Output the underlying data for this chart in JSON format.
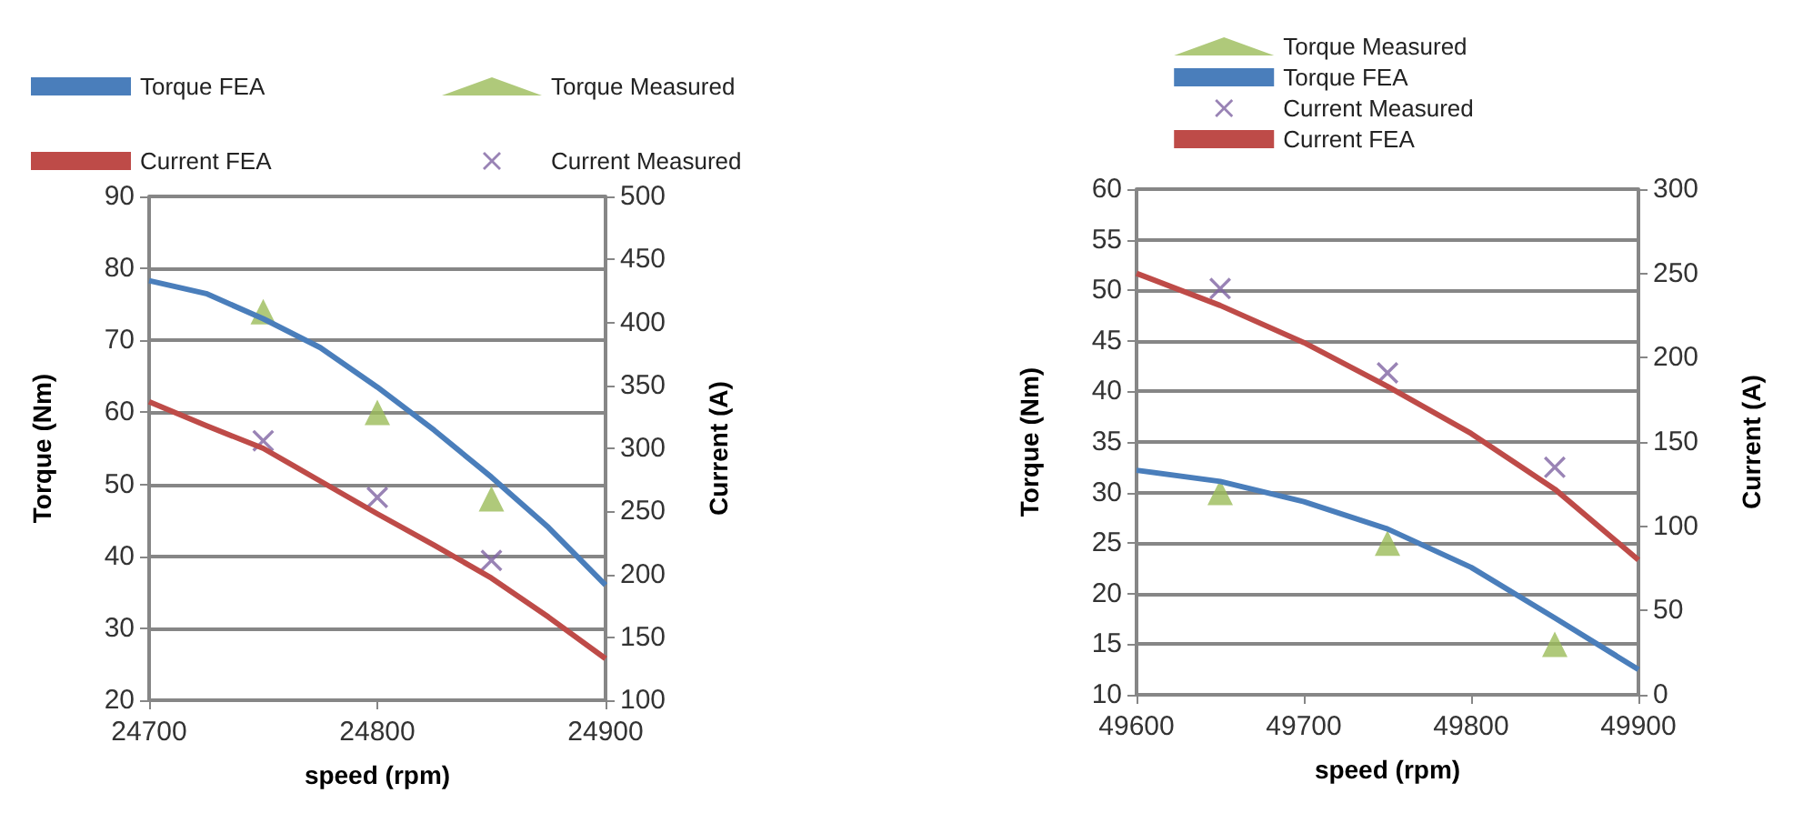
{
  "chart_data": [
    {
      "type": "line",
      "xlabel": "speed (rpm)",
      "ylabel": "Torque (Nm)",
      "y2label": "Current (A)",
      "xlim": [
        24700,
        24900
      ],
      "xticks": [
        24700,
        24800,
        24900
      ],
      "ylim": [
        20,
        90
      ],
      "yticks": [
        20,
        30,
        40,
        50,
        60,
        70,
        80,
        90
      ],
      "y2lim": [
        100,
        500
      ],
      "y2ticks": [
        100,
        150,
        200,
        250,
        300,
        350,
        400,
        450,
        500
      ],
      "grid": "y",
      "legend": "top left",
      "series": [
        {
          "name": "Torque FEA",
          "color": "#4a7ebb",
          "marker": "none",
          "x": [
            24700,
            24725,
            24750,
            24775,
            24800,
            24825,
            24850,
            24875,
            24900
          ],
          "values": [
            78.3,
            76.5,
            73,
            69,
            63.5,
            57.5,
            51,
            44,
            36
          ]
        },
        {
          "name": "Torque Measured",
          "type": "scatter",
          "color": "#9bbb59",
          "marker": "triangle",
          "x": [
            24750,
            24800,
            24850
          ],
          "values": [
            74,
            60,
            48
          ]
        },
        {
          "name": "Current FEA",
          "color": "#be4b48",
          "marker": "none",
          "axis": "y2",
          "x": [
            24700,
            24725,
            24750,
            24775,
            24800,
            24825,
            24850,
            24875,
            24900
          ],
          "values": [
            337,
            318,
            300,
            274,
            248,
            223,
            197,
            166,
            133
          ]
        },
        {
          "name": "Current Measured",
          "type": "scatter",
          "color": "#8064a2",
          "marker": "cross",
          "axis": "y2",
          "x": [
            24750,
            24800,
            24850
          ],
          "values": [
            306,
            261,
            211
          ]
        }
      ]
    },
    {
      "type": "line",
      "xlabel": "speed (rpm)",
      "ylabel": "Torque (Nm)",
      "y2label": "Current (A)",
      "xlim": [
        49600,
        49900
      ],
      "xticks": [
        49600,
        49700,
        49800,
        49900
      ],
      "ylim": [
        10,
        60
      ],
      "yticks": [
        10,
        15,
        20,
        25,
        30,
        35,
        40,
        45,
        50,
        55,
        60
      ],
      "y2lim": [
        0,
        300
      ],
      "y2ticks": [
        0,
        50,
        100,
        150,
        200,
        250,
        300
      ],
      "grid": "y",
      "legend": "top",
      "series": [
        {
          "name": "Torque Measured",
          "type": "scatter",
          "color": "#9bbb59",
          "marker": "triangle",
          "x": [
            49650,
            49750,
            49850
          ],
          "values": [
            30,
            25,
            15
          ]
        },
        {
          "name": "Torque FEA",
          "color": "#4a7ebb",
          "marker": "none",
          "x": [
            49600,
            49650,
            49700,
            49750,
            49800,
            49850,
            49900
          ],
          "values": [
            32.2,
            31.1,
            29.1,
            26.4,
            22.6,
            17.6,
            12.5
          ]
        },
        {
          "name": "Current Measured",
          "type": "scatter",
          "color": "#8064a2",
          "marker": "cross",
          "axis": "y2",
          "x": [
            49650,
            49750,
            49850
          ],
          "values": [
            241,
            191,
            135
          ]
        },
        {
          "name": "Current FEA",
          "color": "#be4b48",
          "marker": "none",
          "axis": "y2",
          "x": [
            49600,
            49650,
            49700,
            49750,
            49800,
            49850,
            49900
          ],
          "values": [
            250,
            231,
            209,
            183,
            155,
            122,
            80
          ]
        }
      ]
    }
  ]
}
